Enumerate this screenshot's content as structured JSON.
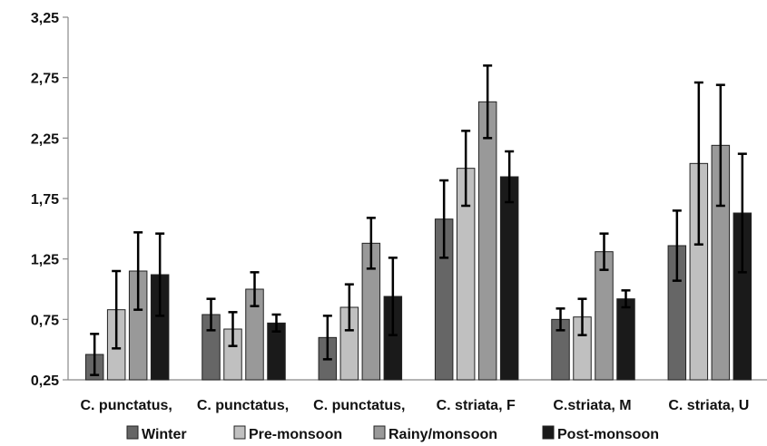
{
  "chart_data": {
    "type": "bar",
    "title": "",
    "xlabel": "",
    "ylabel": "",
    "ylim": [
      0.25,
      3.25
    ],
    "yticks": [
      "0,25",
      "0,75",
      "1,25",
      "1,75",
      "2,25",
      "2,75",
      "3,25"
    ],
    "ytick_values": [
      0.25,
      0.75,
      1.25,
      1.75,
      2.25,
      2.75,
      3.25
    ],
    "grid": false,
    "legend_position": "bottom",
    "categories": [
      "C. punctatus,",
      "C. punctatus,",
      "C. punctatus,",
      "C. striata, F",
      "C.striata, M",
      "C. striata, U"
    ],
    "series": [
      {
        "name": "Winter",
        "color": "#666666",
        "values": [
          0.46,
          0.79,
          0.6,
          1.58,
          0.75,
          1.36
        ],
        "errors": [
          0.17,
          0.13,
          0.18,
          0.32,
          0.09,
          0.29
        ]
      },
      {
        "name": "Pre-monsoon",
        "color": "#c0c0c0",
        "values": [
          0.83,
          0.67,
          0.85,
          2.0,
          0.77,
          2.04
        ],
        "errors": [
          0.32,
          0.14,
          0.19,
          0.31,
          0.15,
          0.67
        ]
      },
      {
        "name": "Rainy/monsoon",
        "color": "#999999",
        "values": [
          1.15,
          1.0,
          1.38,
          2.55,
          1.31,
          2.19
        ],
        "errors": [
          0.32,
          0.14,
          0.21,
          0.3,
          0.15,
          0.5
        ]
      },
      {
        "name": "Post-monsoon",
        "color": "#1a1a1a",
        "values": [
          1.12,
          0.72,
          0.94,
          1.93,
          0.92,
          1.63
        ],
        "errors": [
          0.34,
          0.07,
          0.32,
          0.21,
          0.07,
          0.49
        ]
      }
    ]
  }
}
